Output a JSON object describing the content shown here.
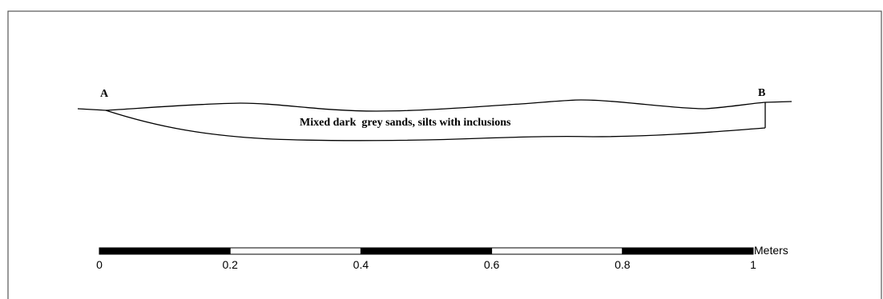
{
  "section": {
    "label_start": "A",
    "label_end": "B",
    "fill_label": "Mixed dark  grey sands, silts with inclusions"
  },
  "scale_bar": {
    "unit": "Meters",
    "ticks": [
      "0",
      "0.2",
      "0.4",
      "0.6",
      "0.8",
      "1"
    ],
    "segment_colors": [
      "#000000",
      "#ffffff",
      "#000000",
      "#ffffff",
      "#000000"
    ]
  },
  "colors": {
    "line": "#000000",
    "frame": "#555555",
    "background": "#ffffff"
  }
}
